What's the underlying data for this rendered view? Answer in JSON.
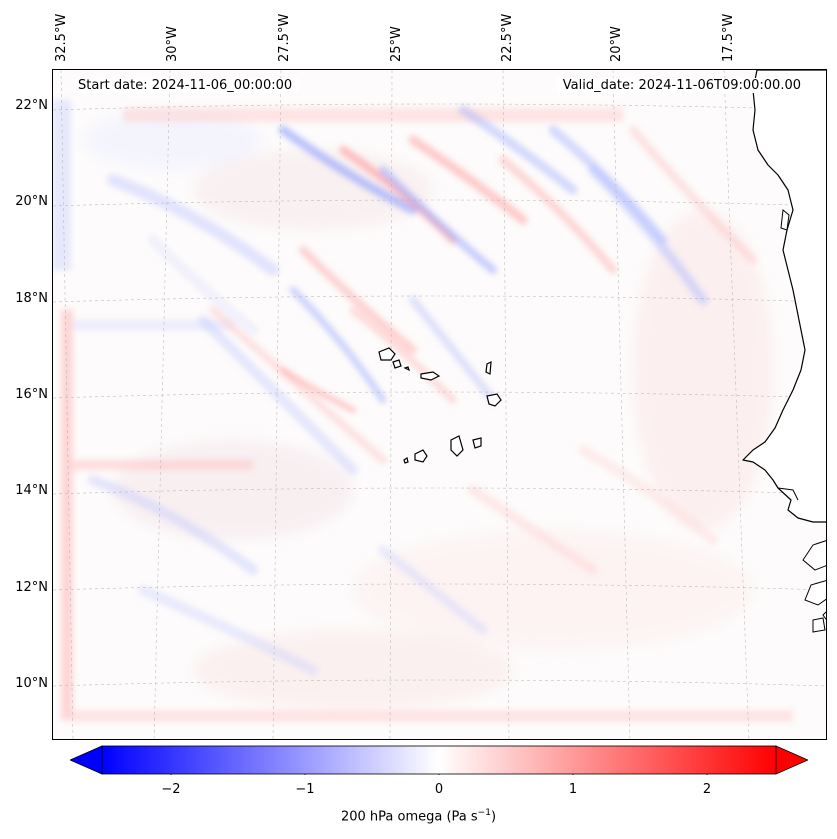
{
  "header": {
    "start_date": "Start date: 2024-11-06_00:00:00",
    "valid_date": "Valid_date: 2024-11-06T09:00:00.00"
  },
  "longitude_labels": [
    "32.5°W",
    "30°W",
    "27.5°W",
    "25°W",
    "22.5°W",
    "20°W",
    "17.5°W"
  ],
  "latitude_labels": [
    "22°N",
    "20°N",
    "18°N",
    "16°N",
    "14°N",
    "12°N",
    "10°N"
  ],
  "colorbar": {
    "ticks": [
      "−2",
      "−1",
      "0",
      "1",
      "2"
    ],
    "label_main": "200 hPa omega (Pa s",
    "label_exp": "−1",
    "label_end": ")",
    "colors": {
      "neg": "#0000ff",
      "mid": "#ffffff",
      "pos": "#ff0000"
    }
  },
  "map": {
    "land_color": "#ffffff",
    "coast_color": "#000000",
    "grid_color": "#b0b0b0"
  }
}
